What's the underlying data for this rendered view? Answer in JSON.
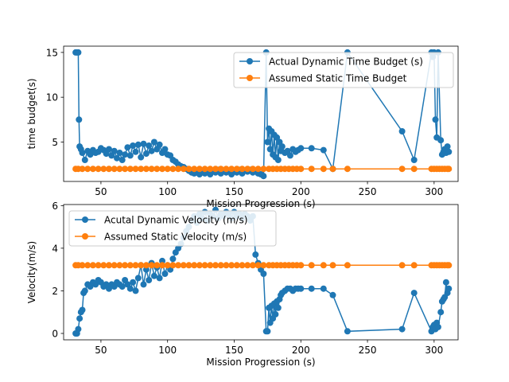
{
  "chart_data": [
    {
      "type": "line",
      "xlabel": "Mission  Progression (s)",
      "ylabel": "time budget(s)",
      "xlim": [
        22,
        318
      ],
      "ylim": [
        0.6,
        15.7
      ],
      "xticks": [
        50,
        100,
        150,
        200,
        250,
        300
      ],
      "yticks": [
        5,
        10,
        15
      ],
      "legend_position": "top-right",
      "series": [
        {
          "name": "Actual Dynamic Time Budget (s)",
          "color": "#1f77b4",
          "x": [
            31,
            32,
            33,
            33.5,
            34,
            35,
            36,
            38,
            40,
            42,
            44,
            46,
            48,
            50,
            52,
            54,
            56,
            58,
            60,
            62,
            64,
            66,
            68,
            70,
            72,
            74,
            76,
            78,
            80,
            82,
            84,
            86,
            88,
            90,
            92,
            94,
            96,
            98,
            100,
            102,
            104,
            106,
            108,
            110,
            112,
            114,
            116,
            118,
            120,
            122,
            124,
            126,
            128,
            130,
            132,
            134,
            136,
            138,
            140,
            142,
            144,
            146,
            148,
            150,
            152,
            154,
            156,
            158,
            160,
            162,
            164,
            166,
            168,
            170,
            172,
            174,
            175,
            176,
            177,
            178,
            179,
            180,
            181,
            182,
            183,
            184,
            185,
            186,
            188,
            190,
            192,
            194,
            196,
            198,
            200,
            208,
            217,
            224,
            235,
            276,
            285,
            298,
            299,
            300,
            301,
            302,
            303,
            305,
            306,
            307,
            308,
            309,
            310,
            311
          ],
          "y": [
            15,
            15,
            15,
            7.5,
            4.5,
            4.2,
            3.8,
            3.0,
            4.0,
            3.6,
            4.1,
            3.8,
            3.9,
            4.3,
            4.1,
            3.7,
            4.2,
            3.5,
            4.0,
            3.2,
            3.8,
            3.0,
            3.6,
            4.4,
            3.5,
            4.6,
            3.9,
            4.7,
            3.3,
            4.8,
            3.7,
            4.6,
            4.0,
            5.0,
            4.2,
            4.7,
            3.8,
            4.2,
            3.6,
            3.5,
            3.0,
            2.8,
            2.5,
            2.3,
            2.2,
            2.0,
            1.8,
            1.6,
            1.5,
            1.6,
            1.4,
            1.7,
            1.5,
            1.8,
            1.4,
            1.7,
            1.6,
            1.9,
            1.5,
            1.8,
            1.6,
            1.7,
            1.4,
            1.8,
            1.6,
            1.9,
            1.5,
            1.8,
            1.7,
            1.9,
            1.6,
            1.8,
            1.5,
            1.4,
            1.2,
            15,
            5.0,
            6.5,
            4.2,
            6.2,
            3.6,
            5.8,
            3.3,
            5.5,
            3.0,
            5.0,
            4.0,
            4.5,
            3.8,
            4.0,
            3.5,
            4.2,
            3.9,
            4.1,
            4.3,
            4.3,
            4.1,
            2.0,
            15,
            6.2,
            3.0,
            15,
            14.5,
            15,
            7.5,
            5.5,
            15,
            5.2,
            3.6,
            3.9,
            4.2,
            3.8,
            4.5,
            3.9
          ]
        },
        {
          "name": "Assumed Static Time Budget",
          "color": "#ff7f0e",
          "x": [
            31,
            33,
            36,
            40,
            44,
            48,
            52,
            56,
            60,
            64,
            68,
            72,
            76,
            80,
            84,
            88,
            92,
            96,
            100,
            104,
            108,
            112,
            116,
            120,
            124,
            128,
            132,
            136,
            140,
            144,
            148,
            152,
            156,
            160,
            164,
            168,
            172,
            176,
            179,
            182,
            185,
            188,
            191,
            194,
            197,
            200,
            208,
            217,
            224,
            235,
            276,
            285,
            298,
            300,
            302,
            304,
            306,
            308,
            310,
            311
          ],
          "y": [
            2,
            2,
            2,
            2,
            2,
            2,
            2,
            2,
            2,
            2,
            2,
            2,
            2,
            2,
            2,
            2,
            2,
            2,
            2,
            2,
            2,
            2,
            2,
            2,
            2,
            2,
            2,
            2,
            2,
            2,
            2,
            2,
            2,
            2,
            2,
            2,
            2,
            2,
            2,
            2,
            2,
            2,
            2,
            2,
            2,
            2,
            2,
            2,
            2,
            2,
            2,
            2,
            2,
            2,
            2,
            2,
            2,
            2,
            2,
            2
          ]
        }
      ]
    },
    {
      "type": "line",
      "xlabel": "Mission  Progression (s)",
      "ylabel": "Velocity(m/s)",
      "xlim": [
        22,
        318
      ],
      "ylim": [
        -0.3,
        6.05
      ],
      "xticks": [
        50,
        100,
        150,
        200,
        250,
        300
      ],
      "yticks": [
        0,
        2,
        4,
        6
      ],
      "legend_position": "top-left",
      "series": [
        {
          "name": "Acutal Dynamic Velocity (m/s)",
          "color": "#1f77b4",
          "x": [
            31,
            32,
            33,
            34,
            35,
            36,
            37,
            38,
            40,
            42,
            44,
            46,
            48,
            50,
            52,
            54,
            56,
            58,
            60,
            62,
            64,
            66,
            68,
            70,
            72,
            74,
            76,
            78,
            80,
            82,
            84,
            86,
            88,
            90,
            92,
            94,
            96,
            98,
            100,
            102,
            104,
            106,
            108,
            110,
            112,
            114,
            116,
            118,
            120,
            122,
            124,
            126,
            128,
            130,
            132,
            134,
            136,
            138,
            140,
            142,
            144,
            146,
            148,
            150,
            152,
            154,
            156,
            158,
            160,
            162,
            164,
            166,
            168,
            170,
            172,
            174,
            175,
            176,
            177,
            178,
            179,
            180,
            181,
            182,
            183,
            184,
            185,
            186,
            188,
            190,
            192,
            194,
            196,
            198,
            200,
            208,
            217,
            224,
            235,
            276,
            285,
            298,
            299,
            300,
            301,
            302,
            303,
            305,
            306,
            307,
            308,
            309,
            310,
            311
          ],
          "y": [
            0,
            0,
            0.2,
            0.7,
            1.0,
            1.1,
            1.9,
            2.0,
            2.3,
            2.2,
            2.4,
            2.3,
            2.5,
            2.4,
            2.2,
            2.3,
            2.1,
            2.3,
            2.2,
            2.4,
            2.3,
            2.2,
            2.5,
            2.3,
            2.1,
            2.4,
            2.0,
            2.6,
            3.2,
            2.3,
            3.0,
            2.5,
            3.3,
            2.7,
            3.1,
            2.6,
            3.4,
            2.8,
            3.2,
            3.0,
            3.5,
            3.8,
            4.0,
            4.2,
            4.5,
            4.8,
            5.0,
            5.3,
            5.5,
            5.2,
            5.6,
            5.4,
            5.7,
            5.3,
            5.6,
            5.5,
            5.8,
            5.4,
            5.6,
            5.5,
            5.7,
            5.6,
            5.4,
            5.7,
            5.5,
            5.6,
            5.4,
            5.6,
            5.5,
            5.3,
            5.5,
            3.7,
            3.3,
            3.0,
            2.8,
            0.1,
            0.1,
            1.2,
            0.5,
            1.3,
            0.7,
            1.4,
            0.9,
            1.5,
            1.2,
            1.6,
            1.8,
            1.9,
            2.0,
            2.1,
            2.1,
            2.0,
            2.1,
            2.1,
            2.1,
            2.1,
            2.1,
            1.8,
            0.1,
            0.2,
            1.9,
            0.1,
            0.3,
            0.4,
            0.2,
            0.5,
            0.3,
            1.0,
            1.5,
            1.6,
            1.7,
            2.4,
            1.9,
            2.1
          ]
        },
        {
          "name": "Assumed Static Velocity (m/s)",
          "color": "#ff7f0e",
          "x": [
            31,
            33,
            36,
            40,
            44,
            48,
            52,
            56,
            60,
            64,
            68,
            72,
            76,
            80,
            84,
            88,
            92,
            96,
            100,
            104,
            108,
            112,
            116,
            120,
            124,
            128,
            132,
            136,
            140,
            144,
            148,
            152,
            156,
            160,
            164,
            168,
            172,
            176,
            179,
            182,
            185,
            188,
            191,
            194,
            197,
            200,
            208,
            217,
            224,
            235,
            276,
            285,
            298,
            300,
            302,
            304,
            306,
            308,
            310,
            311
          ],
          "y": [
            3.2,
            3.2,
            3.2,
            3.2,
            3.2,
            3.2,
            3.2,
            3.2,
            3.2,
            3.2,
            3.2,
            3.2,
            3.2,
            3.2,
            3.2,
            3.2,
            3.2,
            3.2,
            3.2,
            3.2,
            3.2,
            3.2,
            3.2,
            3.2,
            3.2,
            3.2,
            3.2,
            3.2,
            3.2,
            3.2,
            3.2,
            3.2,
            3.2,
            3.2,
            3.2,
            3.2,
            3.2,
            3.2,
            3.2,
            3.2,
            3.2,
            3.2,
            3.2,
            3.2,
            3.2,
            3.2,
            3.2,
            3.2,
            3.2,
            3.2,
            3.2,
            3.2,
            3.2,
            3.2,
            3.2,
            3.2,
            3.2,
            3.2,
            3.2,
            3.2
          ]
        }
      ]
    }
  ]
}
